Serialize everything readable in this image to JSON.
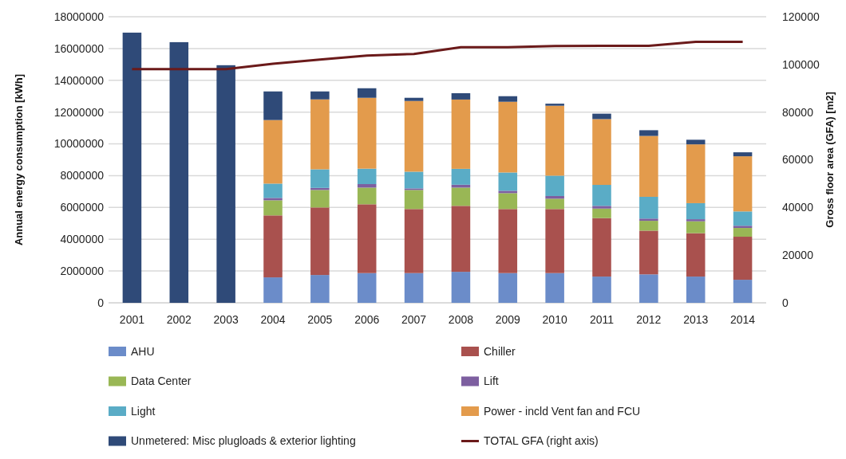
{
  "chart_data": {
    "type": "bar",
    "stacked": true,
    "categories": [
      "2001",
      "2002",
      "2003",
      "2004",
      "2005",
      "2006",
      "2007",
      "2008",
      "2009",
      "2010",
      "2011",
      "2012",
      "2013",
      "2014"
    ],
    "ylabel": "Annual energy consumption [kWh]",
    "y2label": "Gross floor area (GFA) [m2]",
    "ylim": [
      0,
      18000000
    ],
    "yticks": [
      0,
      2000000,
      4000000,
      6000000,
      8000000,
      10000000,
      12000000,
      14000000,
      16000000,
      18000000
    ],
    "y2lim": [
      0,
      120000
    ],
    "y2ticks": [
      0,
      20000,
      40000,
      60000,
      80000,
      100000,
      120000
    ],
    "grid": "y",
    "legend": "bottom",
    "series": [
      {
        "name": "AHU",
        "color": "#6b8cc9",
        "values": [
          null,
          null,
          null,
          1600000,
          1750000,
          1870000,
          1870000,
          1950000,
          1870000,
          1870000,
          1650000,
          1790000,
          1650000,
          1450000
        ]
      },
      {
        "name": "Chiller",
        "color": "#a9514e",
        "values": [
          null,
          null,
          null,
          3900000,
          4250000,
          4330000,
          4030000,
          4150000,
          4030000,
          4030000,
          3680000,
          2750000,
          2730000,
          2710000
        ]
      },
      {
        "name": "Data Center",
        "color": "#99b755",
        "values": [
          null,
          null,
          null,
          950000,
          1100000,
          1050000,
          1200000,
          1150000,
          1000000,
          650000,
          600000,
          620000,
          750000,
          550000
        ]
      },
      {
        "name": "Lift",
        "color": "#7d5fa0",
        "values": [
          null,
          null,
          null,
          150000,
          130000,
          220000,
          100000,
          180000,
          150000,
          170000,
          170000,
          140000,
          130000,
          140000
        ]
      },
      {
        "name": "Light",
        "color": "#5aacc6",
        "values": [
          null,
          null,
          null,
          900000,
          1170000,
          970000,
          1050000,
          1000000,
          1150000,
          1280000,
          1320000,
          1370000,
          1010000,
          900000
        ]
      },
      {
        "name": "Power - incld Vent fan and FCU",
        "color": "#e39b4c",
        "values": [
          null,
          null,
          null,
          4000000,
          4400000,
          4460000,
          4450000,
          4360000,
          4450000,
          4400000,
          4140000,
          3830000,
          3700000,
          3470000
        ]
      },
      {
        "name": "Unmetered: Misc plugloads & exterior lighting",
        "color": "#2f4a78",
        "values": [
          17000000,
          16400000,
          14950000,
          1800000,
          500000,
          600000,
          200000,
          400000,
          350000,
          130000,
          340000,
          360000,
          290000,
          250000
        ]
      },
      {
        "name": "TOTAL GFA (right axis)",
        "type": "line",
        "axis": "y2",
        "color": "#6b1a1a",
        "values": [
          98000,
          98000,
          98000,
          100300,
          102000,
          103700,
          104400,
          107200,
          107200,
          107700,
          107800,
          107800,
          109500,
          109500
        ]
      }
    ]
  }
}
